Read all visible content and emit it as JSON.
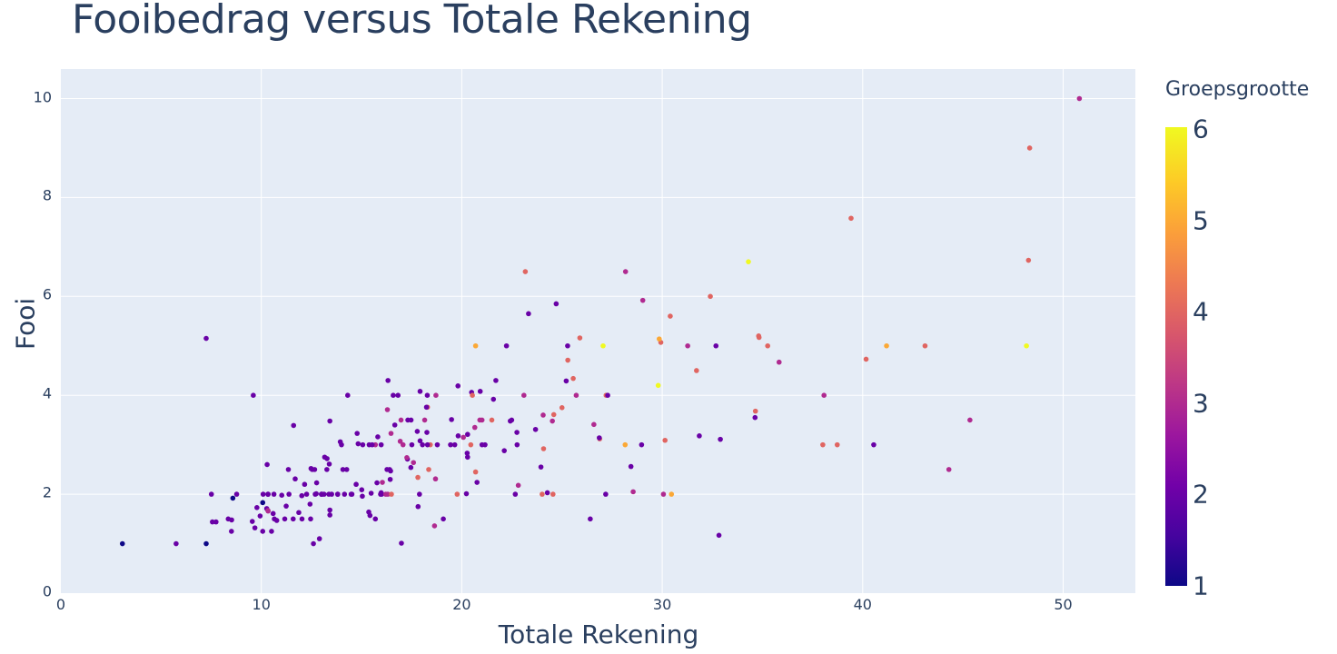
{
  "chart_data": {
    "type": "scatter",
    "title": "Fooibedrag versus Totale Rekening",
    "xlabel": "Totale Rekening",
    "ylabel": "Fooi",
    "xlim": [
      0,
      53.6
    ],
    "ylim": [
      0,
      10.6
    ],
    "x_ticks": [
      "0",
      "10",
      "20",
      "30",
      "40",
      "50"
    ],
    "y_ticks": [
      "0",
      "2",
      "4",
      "6",
      "8",
      "10"
    ],
    "grid": true,
    "colorbar": {
      "title": "Groepsgrootte",
      "range": [
        1,
        6
      ],
      "ticks": [
        "1",
        "2",
        "3",
        "4",
        "5",
        "6"
      ],
      "colorscale": "Plasma"
    },
    "points": [
      [
        16.99,
        1.01,
        2
      ],
      [
        10.34,
        1.66,
        3
      ],
      [
        21.01,
        3.5,
        3
      ],
      [
        23.68,
        3.31,
        2
      ],
      [
        24.59,
        3.61,
        4
      ],
      [
        25.29,
        4.71,
        4
      ],
      [
        8.77,
        2.0,
        2
      ],
      [
        26.88,
        3.12,
        4
      ],
      [
        15.04,
        1.96,
        2
      ],
      [
        14.78,
        3.23,
        2
      ],
      [
        10.27,
        1.71,
        2
      ],
      [
        35.26,
        5.0,
        4
      ],
      [
        15.42,
        1.57,
        2
      ],
      [
        18.43,
        3.0,
        4
      ],
      [
        14.83,
        3.02,
        2
      ],
      [
        21.58,
        3.92,
        2
      ],
      [
        10.33,
        1.67,
        3
      ],
      [
        16.29,
        3.71,
        3
      ],
      [
        16.97,
        3.5,
        3
      ],
      [
        20.65,
        3.35,
        3
      ],
      [
        17.92,
        4.08,
        2
      ],
      [
        20.29,
        2.75,
        2
      ],
      [
        15.77,
        2.23,
        2
      ],
      [
        39.42,
        7.58,
        4
      ],
      [
        19.82,
        3.18,
        2
      ],
      [
        17.81,
        2.34,
        4
      ],
      [
        13.37,
        2.0,
        2
      ],
      [
        12.69,
        2.0,
        2
      ],
      [
        21.7,
        4.3,
        2
      ],
      [
        19.65,
        3.0,
        2
      ],
      [
        9.55,
        1.45,
        2
      ],
      [
        18.35,
        2.5,
        4
      ],
      [
        15.06,
        3.0,
        2
      ],
      [
        20.69,
        2.45,
        4
      ],
      [
        17.78,
        3.27,
        2
      ],
      [
        24.06,
        3.6,
        3
      ],
      [
        16.31,
        2.0,
        3
      ],
      [
        16.93,
        3.07,
        3
      ],
      [
        18.69,
        2.31,
        3
      ],
      [
        31.27,
        5.0,
        3
      ],
      [
        16.04,
        2.24,
        3
      ],
      [
        17.46,
        2.54,
        2
      ],
      [
        13.94,
        3.06,
        2
      ],
      [
        9.68,
        1.32,
        2
      ],
      [
        30.4,
        5.6,
        4
      ],
      [
        18.29,
        3.0,
        2
      ],
      [
        22.23,
        5.0,
        2
      ],
      [
        32.4,
        6.0,
        4
      ],
      [
        28.55,
        2.05,
        3
      ],
      [
        18.04,
        3.0,
        2
      ],
      [
        12.54,
        2.5,
        2
      ],
      [
        10.29,
        2.6,
        2
      ],
      [
        34.81,
        5.2,
        4
      ],
      [
        9.94,
        1.56,
        2
      ],
      [
        25.56,
        4.34,
        4
      ],
      [
        19.49,
        3.51,
        2
      ],
      [
        38.01,
        3.0,
        4
      ],
      [
        26.41,
        1.5,
        2
      ],
      [
        11.24,
        1.76,
        2
      ],
      [
        48.27,
        6.73,
        4
      ],
      [
        20.29,
        3.21,
        2
      ],
      [
        13.81,
        2.0,
        2
      ],
      [
        11.02,
        1.98,
        2
      ],
      [
        18.29,
        3.76,
        4
      ],
      [
        17.59,
        2.64,
        3
      ],
      [
        20.08,
        3.15,
        3
      ],
      [
        16.45,
        2.47,
        2
      ],
      [
        3.07,
        1.0,
        1
      ],
      [
        20.23,
        2.01,
        2
      ],
      [
        15.01,
        2.09,
        2
      ],
      [
        12.02,
        1.97,
        2
      ],
      [
        17.07,
        3.0,
        3
      ],
      [
        26.86,
        3.14,
        2
      ],
      [
        25.28,
        5.0,
        2
      ],
      [
        14.73,
        2.2,
        2
      ],
      [
        10.51,
        1.25,
        2
      ],
      [
        17.92,
        3.08,
        2
      ],
      [
        27.2,
        4.0,
        4
      ],
      [
        22.76,
        3.0,
        2
      ],
      [
        17.29,
        2.71,
        2
      ],
      [
        19.44,
        3.0,
        2
      ],
      [
        16.66,
        3.4,
        2
      ],
      [
        10.07,
        1.83,
        1
      ],
      [
        32.68,
        5.0,
        2
      ],
      [
        15.98,
        2.03,
        2
      ],
      [
        34.83,
        5.17,
        4
      ],
      [
        13.03,
        2.0,
        2
      ],
      [
        18.28,
        4.0,
        2
      ],
      [
        24.71,
        5.85,
        2
      ],
      [
        21.16,
        3.0,
        2
      ],
      [
        28.97,
        3.0,
        2
      ],
      [
        22.49,
        3.5,
        2
      ],
      [
        5.75,
        1.0,
        2
      ],
      [
        16.32,
        4.3,
        2
      ],
      [
        22.75,
        3.25,
        2
      ],
      [
        40.17,
        4.73,
        4
      ],
      [
        27.28,
        4.0,
        2
      ],
      [
        12.03,
        1.5,
        2
      ],
      [
        21.01,
        3.0,
        2
      ],
      [
        12.46,
        1.5,
        2
      ],
      [
        11.35,
        2.5,
        2
      ],
      [
        15.38,
        3.0,
        2
      ],
      [
        44.3,
        2.5,
        3
      ],
      [
        22.42,
        3.48,
        2
      ],
      [
        20.92,
        4.08,
        2
      ],
      [
        15.36,
        1.64,
        2
      ],
      [
        20.49,
        4.06,
        2
      ],
      [
        25.21,
        4.29,
        2
      ],
      [
        18.24,
        3.76,
        2
      ],
      [
        14.31,
        4.0,
        2
      ],
      [
        14.0,
        3.0,
        2
      ],
      [
        7.25,
        1.0,
        1
      ],
      [
        38.07,
        4.0,
        3
      ],
      [
        23.95,
        2.55,
        2
      ],
      [
        25.71,
        4.0,
        3
      ],
      [
        17.31,
        3.5,
        2
      ],
      [
        29.93,
        5.07,
        4
      ],
      [
        10.65,
        1.5,
        2
      ],
      [
        12.43,
        1.8,
        2
      ],
      [
        24.08,
        2.92,
        4
      ],
      [
        11.69,
        2.31,
        2
      ],
      [
        13.42,
        1.68,
        2
      ],
      [
        14.26,
        2.5,
        2
      ],
      [
        15.95,
        2.0,
        2
      ],
      [
        12.48,
        2.52,
        2
      ],
      [
        29.8,
        4.2,
        6
      ],
      [
        8.52,
        1.48,
        2
      ],
      [
        14.52,
        2.0,
        2
      ],
      [
        11.38,
        2.0,
        2
      ],
      [
        22.82,
        2.18,
        3
      ],
      [
        19.08,
        1.5,
        2
      ],
      [
        20.27,
        2.83,
        2
      ],
      [
        11.17,
        1.5,
        2
      ],
      [
        12.26,
        2.0,
        2
      ],
      [
        18.26,
        3.25,
        2
      ],
      [
        8.51,
        1.25,
        2
      ],
      [
        10.33,
        2.0,
        2
      ],
      [
        14.15,
        2.0,
        2
      ],
      [
        16.0,
        2.0,
        2
      ],
      [
        13.16,
        2.75,
        2
      ],
      [
        17.47,
        3.5,
        2
      ],
      [
        34.3,
        6.7,
        6
      ],
      [
        41.19,
        5.0,
        5
      ],
      [
        27.05,
        5.0,
        6
      ],
      [
        16.43,
        2.3,
        2
      ],
      [
        8.35,
        1.5,
        2
      ],
      [
        18.64,
        1.36,
        3
      ],
      [
        11.87,
        1.63,
        2
      ],
      [
        9.78,
        1.73,
        2
      ],
      [
        7.51,
        2.0,
        2
      ],
      [
        14.07,
        2.5,
        2
      ],
      [
        13.13,
        2.0,
        2
      ],
      [
        17.26,
        2.74,
        3
      ],
      [
        24.55,
        2.0,
        4
      ],
      [
        19.77,
        2.0,
        4
      ],
      [
        29.85,
        5.14,
        5
      ],
      [
        48.17,
        5.0,
        6
      ],
      [
        25.0,
        3.75,
        4
      ],
      [
        13.39,
        2.61,
        2
      ],
      [
        16.49,
        2.0,
        4
      ],
      [
        21.5,
        3.5,
        4
      ],
      [
        12.66,
        2.5,
        2
      ],
      [
        16.21,
        2.0,
        3
      ],
      [
        13.81,
        2.0,
        2
      ],
      [
        17.51,
        3.0,
        2
      ],
      [
        24.52,
        3.48,
        3
      ],
      [
        20.76,
        2.24,
        2
      ],
      [
        31.71,
        4.5,
        4
      ],
      [
        10.59,
        1.61,
        2
      ],
      [
        10.63,
        2.0,
        2
      ],
      [
        50.81,
        10.0,
        3
      ],
      [
        15.81,
        3.16,
        2
      ],
      [
        7.25,
        5.15,
        2
      ],
      [
        31.85,
        3.18,
        2
      ],
      [
        16.82,
        4.0,
        2
      ],
      [
        32.9,
        3.11,
        2
      ],
      [
        17.89,
        2.0,
        2
      ],
      [
        14.48,
        2.0,
        2
      ],
      [
        9.6,
        4.0,
        2
      ],
      [
        34.63,
        3.55,
        2
      ],
      [
        34.65,
        3.68,
        4
      ],
      [
        23.33,
        5.65,
        2
      ],
      [
        45.35,
        3.5,
        3
      ],
      [
        23.17,
        6.5,
        4
      ],
      [
        40.55,
        3.0,
        2
      ],
      [
        20.69,
        5.0,
        5
      ],
      [
        20.9,
        3.5,
        3
      ],
      [
        30.46,
        2.0,
        5
      ],
      [
        18.15,
        3.5,
        3
      ],
      [
        23.1,
        4.0,
        3
      ],
      [
        15.69,
        1.5,
        2
      ],
      [
        19.81,
        4.19,
        2
      ],
      [
        28.44,
        2.56,
        2
      ],
      [
        15.48,
        2.02,
        2
      ],
      [
        16.58,
        4.0,
        2
      ],
      [
        7.56,
        1.44,
        2
      ],
      [
        10.34,
        2.0,
        2
      ],
      [
        43.11,
        5.0,
        4
      ],
      [
        13.0,
        2.0,
        2
      ],
      [
        13.51,
        2.0,
        2
      ],
      [
        18.71,
        4.0,
        3
      ],
      [
        12.74,
        2.01,
        2
      ],
      [
        13.0,
        2.0,
        2
      ],
      [
        16.4,
        2.5,
        2
      ],
      [
        20.53,
        4.0,
        4
      ],
      [
        16.47,
        3.23,
        3
      ],
      [
        26.59,
        3.41,
        3
      ],
      [
        38.73,
        3.0,
        4
      ],
      [
        24.27,
        2.03,
        2
      ],
      [
        12.76,
        2.23,
        2
      ],
      [
        30.06,
        2.0,
        3
      ],
      [
        25.89,
        5.16,
        4
      ],
      [
        48.33,
        9.0,
        4
      ],
      [
        13.27,
        2.5,
        2
      ],
      [
        28.17,
        6.5,
        3
      ],
      [
        12.9,
        1.1,
        2
      ],
      [
        28.15,
        3.0,
        5
      ],
      [
        11.59,
        1.5,
        2
      ],
      [
        7.74,
        1.44,
        2
      ],
      [
        30.14,
        3.09,
        4
      ],
      [
        12.16,
        2.2,
        2
      ],
      [
        13.42,
        3.48,
        2
      ],
      [
        8.58,
        1.92,
        1
      ],
      [
        15.98,
        3.0,
        2
      ],
      [
        13.42,
        1.58,
        2
      ],
      [
        16.27,
        2.5,
        2
      ],
      [
        10.09,
        2.0,
        2
      ],
      [
        20.45,
        3.0,
        4
      ],
      [
        13.28,
        2.72,
        2
      ],
      [
        22.12,
        2.88,
        2
      ],
      [
        24.01,
        2.0,
        4
      ],
      [
        15.69,
        3.0,
        3
      ],
      [
        11.61,
        3.39,
        2
      ],
      [
        10.77,
        1.47,
        2
      ],
      [
        15.53,
        3.0,
        2
      ],
      [
        10.07,
        1.25,
        2
      ],
      [
        12.6,
        1.0,
        2
      ],
      [
        32.83,
        1.17,
        2
      ],
      [
        35.83,
        4.67,
        3
      ],
      [
        29.03,
        5.92,
        3
      ],
      [
        27.18,
        2.0,
        2
      ],
      [
        22.67,
        2.0,
        2
      ],
      [
        17.82,
        1.75,
        2
      ],
      [
        18.78,
        3.0,
        2
      ]
    ]
  }
}
